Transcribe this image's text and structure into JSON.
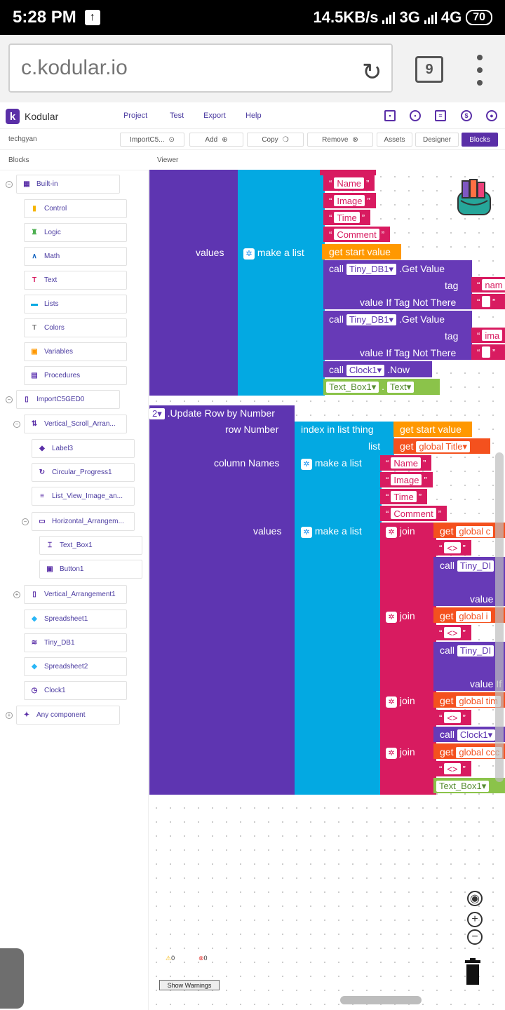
{
  "status": {
    "time": "5:28 PM",
    "net_speed": "14.5KB/s",
    "net1": "3G",
    "net2": "4G",
    "battery": "70"
  },
  "browser": {
    "url": "c.kodular.io",
    "tab_count": "9"
  },
  "app": {
    "brand": "Kodular",
    "menu": [
      "Project",
      "Test",
      "Export",
      "Help"
    ]
  },
  "toolbar": {
    "user": "techgyan",
    "screen": "ImportC5...",
    "add": "Add",
    "copy": "Copy",
    "remove": "Remove",
    "assets": "Assets",
    "designer": "Designer",
    "blocks": "Blocks"
  },
  "headers": {
    "blocks": "Blocks",
    "viewer": "Viewer"
  },
  "tree": {
    "builtin": "Built-in",
    "builtins": [
      "Control",
      "Logic",
      "Math",
      "Text",
      "Lists",
      "Colors",
      "Variables",
      "Procedures"
    ],
    "screen": "ImportC5GED0",
    "vsa": "Vertical_Scroll_Arran...",
    "label3": "Label3",
    "cprog": "Circular_Progress1",
    "lvi": "List_View_Image_an...",
    "harr": "Horizontal_Arrangem...",
    "textbox": "Text_Box1",
    "button": "Button1",
    "varr": "Vertical_Arrangement1",
    "ss1": "Spreadsheet1",
    "tdb": "Tiny_DB1",
    "ss2": "Spreadsheet2",
    "clock": "Clock1",
    "any": "Any component"
  },
  "blocks": {
    "s1": [
      "Name",
      "Image",
      "Time",
      "Comment"
    ],
    "values": "values",
    "make_list": "make a list",
    "get_start": "get start value",
    "call": "call",
    "tinydb": "Tiny_DB1",
    "get_value": ".Get Value",
    "tag": "tag",
    "nam": "nam",
    "ima": "ima",
    "vitnt": "value If Tag Not There",
    "clock": "Clock1",
    "now": ".Now",
    "textbox": "Text_Box1",
    "text": "Text",
    "dot": ".",
    "ss_num": "2",
    "update_row": ".Update Row by Number",
    "row_number": "row Number",
    "index_in_list": "index in list  thing",
    "list": "list",
    "get": "get",
    "global_title": "global Title",
    "column_names": "column Names",
    "join": "join",
    "g1": "global c",
    "sep": "<>",
    "tinyd": "Tiny_DI",
    "value": "value",
    "g2": "global i",
    "value_if": "value If",
    "g3": "global tim",
    "g4": "global ccc",
    "warn_count": "0",
    "err_count": "0",
    "show_warnings": "Show Warnings"
  },
  "colors": {
    "kodular_purple": "#5a2fa7",
    "procedure": "#5e35b1",
    "list": "#03a9e2",
    "text": "#d81b60",
    "variable": "#ff9800",
    "component": "#8bc34a"
  }
}
